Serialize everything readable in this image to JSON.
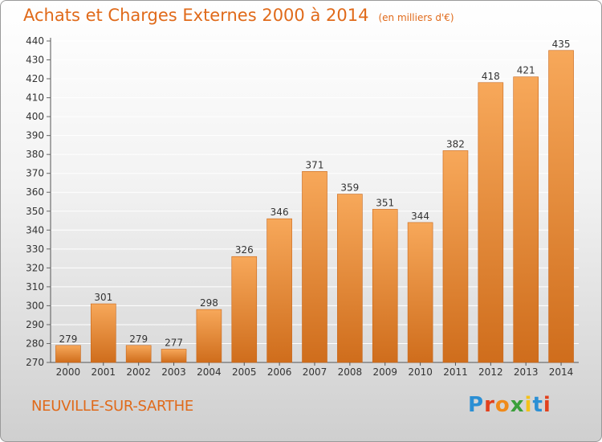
{
  "header": {
    "title": "Achats et Charges Externes 2000 à 2014",
    "unit": "(en milliers d'€)"
  },
  "footer": {
    "commune": "NEUVILLE-SUR-SARTHE",
    "logo_text": "Proxiti"
  },
  "colors": {
    "title": "#e06a1a",
    "bar_top": "#f7a85a",
    "bar_bottom": "#cf6d1c"
  },
  "chart_data": {
    "type": "bar",
    "categories": [
      "2000",
      "2001",
      "2002",
      "2003",
      "2004",
      "2005",
      "2006",
      "2007",
      "2008",
      "2009",
      "2010",
      "2011",
      "2012",
      "2013",
      "2014"
    ],
    "values": [
      279,
      301,
      279,
      277,
      298,
      326,
      346,
      371,
      359,
      351,
      344,
      382,
      418,
      421,
      435
    ],
    "ylim": [
      270,
      440
    ],
    "ytick_step": 10,
    "grid": true,
    "title": "Achats et Charges Externes 2000 à 2014",
    "xlabel": "",
    "ylabel": ""
  }
}
